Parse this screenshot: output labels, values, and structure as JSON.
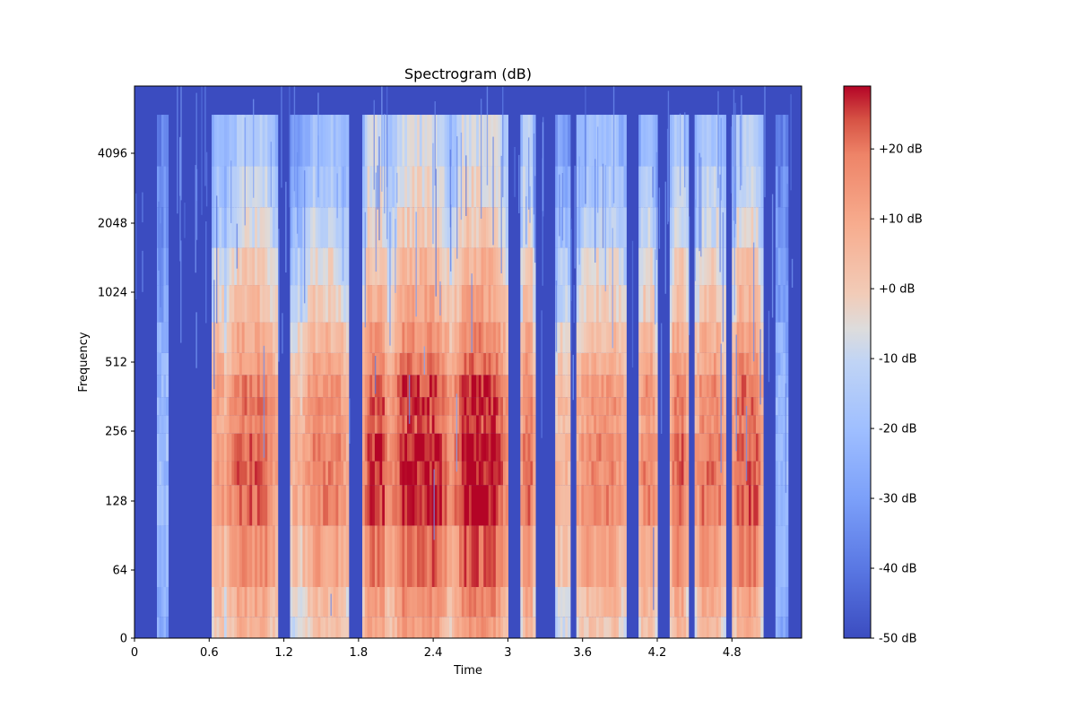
{
  "chart_data": {
    "type": "heatmap",
    "title": "Spectrogram (dB)",
    "xlabel": "Time",
    "ylabel": "Frequency",
    "xlim": [
      0,
      5.36
    ],
    "y_scale": "symlog",
    "x_ticks": [
      {
        "value": 0,
        "label": "0"
      },
      {
        "value": 0.6,
        "label": "0.6"
      },
      {
        "value": 1.2,
        "label": "1.2"
      },
      {
        "value": 1.8,
        "label": "1.8"
      },
      {
        "value": 2.4,
        "label": "2.4"
      },
      {
        "value": 3.0,
        "label": "3"
      },
      {
        "value": 3.6,
        "label": "3.6"
      },
      {
        "value": 4.2,
        "label": "4.2"
      },
      {
        "value": 4.8,
        "label": "4.8"
      }
    ],
    "y_ticks": [
      {
        "value": 0,
        "label": "0"
      },
      {
        "value": 64,
        "label": "64"
      },
      {
        "value": 128,
        "label": "128"
      },
      {
        "value": 256,
        "label": "256"
      },
      {
        "value": 512,
        "label": "512"
      },
      {
        "value": 1024,
        "label": "1024"
      },
      {
        "value": 2048,
        "label": "2048"
      },
      {
        "value": 4096,
        "label": "4096"
      }
    ],
    "colorbar": {
      "colormap": "coolwarm",
      "vmin": -50,
      "vmax": 29,
      "ticks": [
        {
          "value": -50,
          "label": "-50 dB"
        },
        {
          "value": -40,
          "label": "-40 dB"
        },
        {
          "value": -30,
          "label": "-30 dB"
        },
        {
          "value": -20,
          "label": "-20 dB"
        },
        {
          "value": -10,
          "label": "-10 dB"
        },
        {
          "value": 0,
          "label": "+0 dB"
        },
        {
          "value": 10,
          "label": "+10 dB"
        },
        {
          "value": 20,
          "label": "+20 dB"
        }
      ]
    },
    "background_db": -50,
    "sound_segments": [
      {
        "t0": 0.18,
        "t1": 0.27,
        "peak_db": -20
      },
      {
        "t0": 0.62,
        "t1": 0.74,
        "peak_db": 15
      },
      {
        "t0": 0.74,
        "t1": 1.15,
        "peak_db": 22
      },
      {
        "t0": 1.25,
        "t1": 1.35,
        "peak_db": 8
      },
      {
        "t0": 1.35,
        "t1": 1.72,
        "peak_db": 18
      },
      {
        "t0": 1.83,
        "t1": 2.05,
        "peak_db": 26
      },
      {
        "t0": 2.05,
        "t1": 2.55,
        "peak_db": 28
      },
      {
        "t0": 2.55,
        "t1": 3.0,
        "peak_db": 29
      },
      {
        "t0": 3.1,
        "t1": 3.22,
        "peak_db": 22
      },
      {
        "t0": 3.38,
        "t1": 3.5,
        "peak_db": 8
      },
      {
        "t0": 3.55,
        "t1": 3.95,
        "peak_db": 17
      },
      {
        "t0": 4.05,
        "t1": 4.2,
        "peak_db": 18
      },
      {
        "t0": 4.3,
        "t1": 4.45,
        "peak_db": 22
      },
      {
        "t0": 4.5,
        "t1": 4.75,
        "peak_db": 20
      },
      {
        "t0": 4.8,
        "t1": 5.05,
        "peak_db": 24
      },
      {
        "t0": 5.15,
        "t1": 5.25,
        "peak_db": -20
      }
    ]
  }
}
